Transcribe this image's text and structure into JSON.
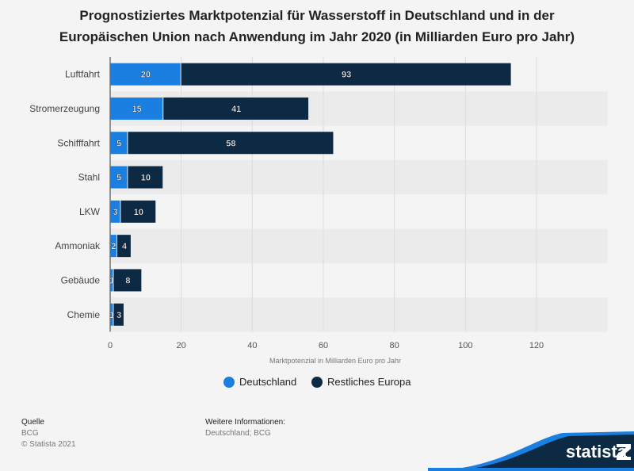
{
  "chart_data": {
    "type": "bar",
    "orientation": "horizontal",
    "stacked": true,
    "title": "Prognostiziertes Marktpotenzial für Wasserstoff in Deutschland und in der Europäischen Union nach Anwendung im Jahr 2020 (in Milliarden Euro pro Jahr)",
    "title_lines": [
      "Prognostiziertes Marktpotenzial für Wasserstoff in Deutschland und in der",
      "Europäischen Union nach Anwendung im Jahr 2020 (in Milliarden Euro pro Jahr)"
    ],
    "categories": [
      "Luftfahrt",
      "Stromerzeugung",
      "Schifffahrt",
      "Stahl",
      "LKW",
      "Ammoniak",
      "Gebäude",
      "Chemie"
    ],
    "series": [
      {
        "name": "Deutschland",
        "color": "#1a7fe0",
        "values": [
          20,
          15,
          5,
          5,
          3,
          2,
          1,
          1
        ]
      },
      {
        "name": "Restliches Europa",
        "color": "#0d2a45",
        "values": [
          93,
          41,
          58,
          10,
          10,
          4,
          8,
          3
        ]
      }
    ],
    "xlabel": "Marktpotenzial in Milliarden Euro pro Jahr",
    "ylabel": "",
    "xlim": [
      0,
      140
    ],
    "xticks": [
      0,
      20,
      40,
      60,
      80,
      100,
      120
    ],
    "grid": true,
    "legend": "bottom"
  },
  "footer": {
    "source_label": "Quelle",
    "source": "BCG",
    "copyright": "© Statista 2021",
    "info_label": "Weitere Informationen:",
    "info": "Deutschland; BCG"
  },
  "logo": "statista"
}
